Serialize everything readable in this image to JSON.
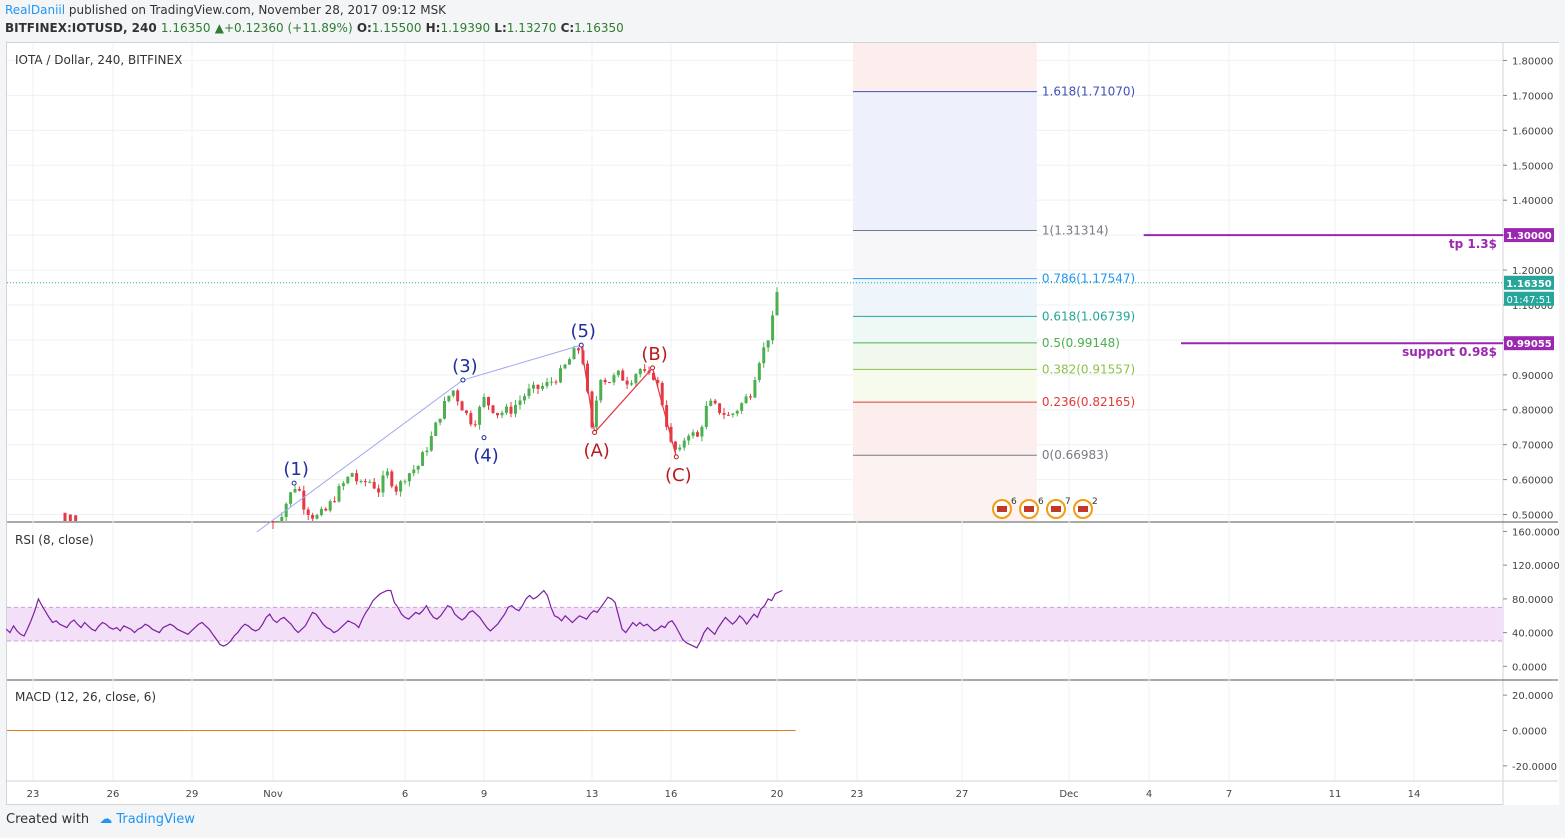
{
  "header": {
    "author": "RealDaniil",
    "published": "published on TradingView.com, November 28, 2017 09:12 MSK",
    "symbol": "BITFINEX:IOTUSD, 240",
    "last": "1.16350",
    "change": "+0.12360 (+11.89%)",
    "o_label": "O:",
    "o": "1.15500",
    "h_label": "H:",
    "h": "1.19390",
    "l_label": "L:",
    "l": "1.13270",
    "c_label": "C:",
    "c": "1.16350"
  },
  "footer": {
    "created_with": "Created with",
    "brand": "TradingView"
  },
  "colors": {
    "up": "#4caf50",
    "down": "#e53945",
    "wave_blue": "#1f2f9c",
    "wave_red": "#b71c1c",
    "purple": "#9c27b0",
    "rsi": "#7b1fa2"
  },
  "chart_data": [
    {
      "type": "candlestick",
      "title": "IOTA / Dollar, 240, BITFINEX",
      "x_ticks": [
        "23",
        "26",
        "29",
        "Nov",
        "6",
        "9",
        "13",
        "16",
        "20",
        "23",
        "27",
        "Dec",
        "4",
        "7",
        "11",
        "14"
      ],
      "y_ticks": [
        "0.50000",
        "0.60000",
        "0.70000",
        "0.80000",
        "0.90000",
        "1.00000",
        "1.10000",
        "1.20000",
        "1.30000",
        "1.40000",
        "1.50000",
        "1.60000",
        "1.70000",
        "1.80000"
      ],
      "ylim": [
        0.47,
        1.83
      ],
      "price_path": [
        [
          9,
          0.45
        ],
        [
          9.3,
          0.5
        ],
        [
          9.6,
          0.55
        ],
        [
          9.9,
          0.59
        ],
        [
          10.2,
          0.52
        ],
        [
          10.6,
          0.49
        ],
        [
          11,
          0.51
        ],
        [
          11.5,
          0.57
        ],
        [
          12,
          0.62
        ],
        [
          12.3,
          0.58
        ],
        [
          12.6,
          0.6
        ],
        [
          13,
          0.57
        ],
        [
          13.3,
          0.62
        ],
        [
          13.7,
          0.57
        ],
        [
          14,
          0.61
        ],
        [
          14.5,
          0.64
        ],
        [
          15,
          0.72
        ],
        [
          15.4,
          0.8
        ],
        [
          15.8,
          0.86
        ],
        [
          16.3,
          0.79
        ],
        [
          16.6,
          0.76
        ],
        [
          17,
          0.83
        ],
        [
          17.5,
          0.79
        ],
        [
          18,
          0.8
        ],
        [
          18.6,
          0.85
        ],
        [
          19.3,
          0.87
        ],
        [
          19.8,
          0.9
        ],
        [
          20.3,
          0.96
        ],
        [
          20.6,
          0.98
        ],
        [
          21,
          0.74
        ],
        [
          21.3,
          0.9
        ],
        [
          21.6,
          0.88
        ],
        [
          22,
          0.9
        ],
        [
          22.4,
          0.88
        ],
        [
          22.8,
          0.92
        ],
        [
          23.1,
          0.89
        ],
        [
          23.4,
          0.9
        ],
        [
          23.7,
          0.81
        ],
        [
          24,
          0.7
        ],
        [
          24.3,
          0.67
        ],
        [
          24.6,
          0.74
        ],
        [
          25,
          0.72
        ],
        [
          25.4,
          0.82
        ],
        [
          25.8,
          0.8
        ],
        [
          26.2,
          0.78
        ],
        [
          26.6,
          0.81
        ],
        [
          27,
          0.85
        ],
        [
          27.3,
          0.94
        ],
        [
          27.6,
          0.99
        ],
        [
          27.85,
          1.06
        ],
        [
          28.05,
          1.16
        ]
      ],
      "last_price": "1.16350",
      "countdown": "01:47:51",
      "elliott_labels": [
        {
          "label": "(1)",
          "x": 9.8,
          "price": 0.59,
          "color": "blue",
          "pos": "above"
        },
        {
          "label": "(3)",
          "x": 16.2,
          "price": 0.885,
          "color": "blue",
          "pos": "above"
        },
        {
          "label": "(4)",
          "x": 17.0,
          "price": 0.72,
          "color": "blue",
          "pos": "below"
        },
        {
          "label": "(5)",
          "x": 20.6,
          "price": 0.985,
          "color": "blue",
          "pos": "above"
        },
        {
          "label": "(A)",
          "x": 21.1,
          "price": 0.735,
          "color": "red",
          "pos": "below"
        },
        {
          "label": "(B)",
          "x": 23.3,
          "price": 0.92,
          "color": "red",
          "pos": "above"
        },
        {
          "label": "(C)",
          "x": 24.2,
          "price": 0.665,
          "color": "red",
          "pos": "below"
        }
      ],
      "fibonacci": [
        {
          "label": "1.618(1.71070)",
          "price": 1.7107,
          "color": "#3f51b5"
        },
        {
          "label": "1(1.31314)",
          "price": 1.31314,
          "color": "#787b86"
        },
        {
          "label": "0.786(1.17547)",
          "price": 1.17547,
          "color": "#2196f3"
        },
        {
          "label": "0.618(1.06739)",
          "price": 1.06739,
          "color": "#26a69a"
        },
        {
          "label": "0.5(0.99148)",
          "price": 0.99148,
          "color": "#4caf50"
        },
        {
          "label": "0.382(0.91557)",
          "price": 0.91557,
          "color": "#8bc34a"
        },
        {
          "label": "0.236(0.82165)",
          "price": 0.82165,
          "color": "#e53935"
        },
        {
          "label": "0(0.66983)",
          "price": 0.66983,
          "color": "#787b86"
        }
      ],
      "horizontal_lines": [
        {
          "label": "tp 1.3$",
          "price": 1.3,
          "tag": "1.30000"
        },
        {
          "label": "support 0.98$",
          "price": 0.99055,
          "tag": "0.99055"
        }
      ],
      "event_badges": [
        "6",
        "6",
        "7",
        "2"
      ]
    },
    {
      "type": "line",
      "title": "RSI (8, close)",
      "y_ticks": [
        "160.0000",
        "120.0000",
        "80.0000",
        "40.0000",
        "0.0000"
      ],
      "ylim": [
        -15,
        170
      ],
      "band": [
        30,
        70
      ],
      "values": [
        44,
        40,
        48,
        42,
        38,
        36,
        45,
        55,
        66,
        80,
        72,
        65,
        58,
        52,
        54,
        50,
        48,
        46,
        52,
        55,
        50,
        46,
        52,
        48,
        44,
        42,
        48,
        52,
        50,
        46,
        44,
        46,
        42,
        48,
        46,
        44,
        40,
        44,
        46,
        50,
        48,
        44,
        42,
        40,
        46,
        48,
        50,
        48,
        44,
        42,
        40,
        38,
        42,
        46,
        50,
        52,
        48,
        44,
        38,
        32,
        26,
        24,
        26,
        30,
        36,
        40,
        46,
        50,
        48,
        44,
        42,
        44,
        50,
        58,
        62,
        55,
        52,
        56,
        58,
        54,
        50,
        44,
        40,
        44,
        48,
        56,
        64,
        62,
        56,
        50,
        46,
        44,
        40,
        42,
        46,
        50,
        54,
        52,
        50,
        46,
        56,
        64,
        70,
        78,
        82,
        86,
        88,
        90,
        90,
        76,
        70,
        62,
        58,
        56,
        60,
        64,
        62,
        66,
        72,
        64,
        58,
        56,
        60,
        66,
        72,
        70,
        62,
        58,
        55,
        58,
        64,
        66,
        62,
        58,
        52,
        46,
        42,
        46,
        50,
        56,
        62,
        70,
        72,
        68,
        66,
        72,
        80,
        84,
        80,
        82,
        86,
        90,
        84,
        70,
        60,
        58,
        54,
        60,
        56,
        52,
        56,
        60,
        58,
        56,
        62,
        66,
        64,
        70,
        76,
        82,
        80,
        76,
        60,
        44,
        40,
        46,
        52,
        48,
        52,
        48,
        50,
        46,
        42,
        44,
        48,
        46,
        52,
        54,
        48,
        40,
        32,
        28,
        26,
        24,
        22,
        30,
        40,
        46,
        42,
        38,
        46,
        52,
        58,
        54,
        50,
        54,
        60,
        56,
        50,
        56,
        62,
        58,
        68,
        72,
        80,
        78,
        86,
        88,
        90
      ],
      "y_values_note": ""
    },
    {
      "type": "line",
      "title": "MACD (12, 26, close, 6)",
      "y_ticks": [
        "20.0000",
        "0.0000",
        "-20.0000"
      ],
      "ylim": [
        -28,
        28
      ],
      "values": [
        0,
        0
      ]
    }
  ]
}
